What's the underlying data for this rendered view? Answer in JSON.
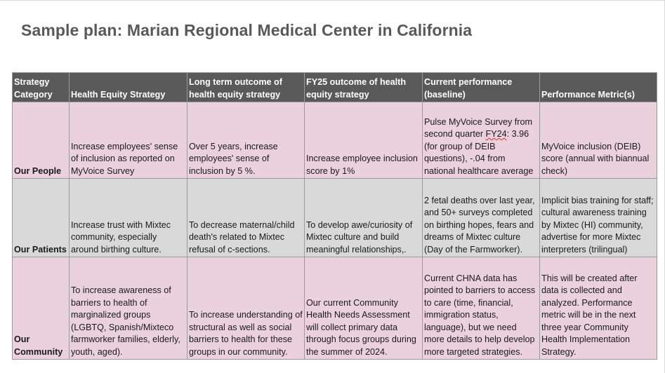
{
  "title": "Sample plan: Marian Regional Medical Center in California",
  "headers": [
    "Strategy Category",
    "Health Equity Strategy",
    "Long term outcome of health equity strategy",
    "FY25 outcome of health equity strategy",
    "Current performance (baseline)",
    "Performance Metric(s)"
  ],
  "rows": [
    {
      "category": "Our People",
      "strategy": "Increase employees' sense of inclusion as reported on MyVoice Survey",
      "long_term": "Over 5 years, increase employees' sense of inclusion by 5 %.",
      "fy25": "Increase employee inclusion score by 1%",
      "baseline_a": "Pulse MyVoice Survey from second quarter ",
      "baseline_flagged": "FY24",
      "baseline_b": ": 3.96 (for group of DEIB questions), -.04 from national healthcare average",
      "metric": "MyVoice inclusion (DEIB) score (annual with biannual check)"
    },
    {
      "category": "Our Patients",
      "strategy": "Increase trust with Mixtec community, especially around birthing culture.",
      "long_term": "To decrease maternal/child death's related to Mixtec refusal of c-sections.",
      "fy25": "To develop awe/curiosity of Mixtec culture and build meaningful relationships,.",
      "baseline": "2 fetal deaths over last year, and 50+ surveys completed on birthing hopes, fears and dreams of Mixtec culture (Day of the Farmworker).",
      "metric": "Implicit bias training for staff; cultural awareness training by Mixtec (HI) community, advertise for more Mixtec interpreters (trilingual)"
    },
    {
      "category": "Our Community",
      "strategy": "To increase awareness of barriers to health of marginalized groups (LGBTQ, Spanish/Mixteco farmworker families, elderly, youth, aged).",
      "long_term": "To increase understanding of structural as well as social barriers to health for these groups in our community.",
      "fy25": "Our current Community Health Needs Assessment will collect primary data through focus groups during the summer of 2024.",
      "baseline": "Current CHNA data has pointed to barriers to access to care (time, financial, immigration status, language), but we need more details to help develop more targeted strategies.",
      "metric": "This will be created after data is collected and analyzed. Performance metric will be in the next three year Community Health Implementation Strategy."
    }
  ]
}
